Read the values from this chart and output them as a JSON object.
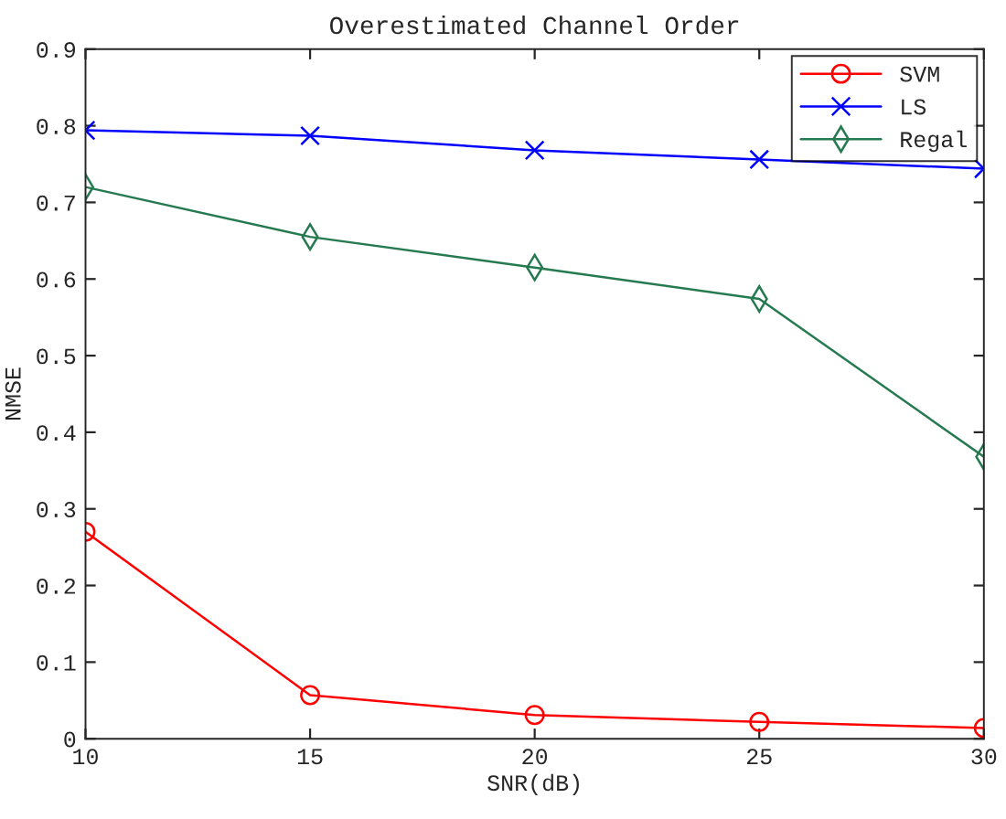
{
  "chart_data": {
    "type": "line",
    "title": "Overestimated Channel Order",
    "xlabel": "SNR(dB)",
    "ylabel": "NMSE",
    "x": [
      10,
      15,
      20,
      25,
      30
    ],
    "series": [
      {
        "name": "SVM",
        "color": "#ff0000",
        "marker": "circle",
        "values": [
          0.27,
          0.057,
          0.031,
          0.022,
          0.014
        ]
      },
      {
        "name": "LS",
        "color": "#0000ff",
        "marker": "cross",
        "values": [
          0.794,
          0.787,
          0.768,
          0.756,
          0.744
        ]
      },
      {
        "name": "Regal",
        "color": "#267a50",
        "marker": "diamond",
        "values": [
          0.72,
          0.655,
          0.615,
          0.574,
          0.368
        ]
      }
    ],
    "xlim": [
      10,
      30
    ],
    "xticks": [
      10,
      15,
      20,
      25,
      30
    ],
    "ylim": [
      0,
      0.9
    ],
    "yticks": [
      0,
      0.1,
      0.2,
      0.3,
      0.4,
      0.5,
      0.6,
      0.7,
      0.8,
      0.9
    ],
    "grid": false,
    "legend": "top right",
    "line_style": "solid"
  }
}
